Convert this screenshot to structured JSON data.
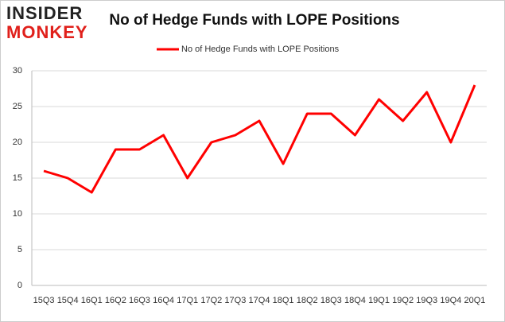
{
  "logo": {
    "line1": "INSIDER",
    "line2": "MONKEY"
  },
  "chart_data": {
    "type": "line",
    "title": "No of Hedge Funds with LOPE Positions",
    "categories": [
      "15Q3",
      "15Q4",
      "16Q1",
      "16Q2",
      "16Q3",
      "16Q4",
      "17Q1",
      "17Q2",
      "17Q3",
      "17Q4",
      "18Q1",
      "18Q2",
      "18Q3",
      "18Q4",
      "19Q1",
      "19Q2",
      "19Q3",
      "19Q4",
      "20Q1"
    ],
    "series": [
      {
        "name": "No of Hedge Funds with LOPE Positions",
        "color": "#ff0000",
        "values": [
          16,
          15,
          13,
          19,
          19,
          21,
          15,
          20,
          21,
          23,
          17,
          24,
          24,
          21,
          26,
          23,
          27,
          20,
          28
        ]
      }
    ],
    "ylim": [
      0,
      30
    ],
    "yticks": [
      0,
      5,
      10,
      15,
      20,
      25,
      30
    ],
    "grid": true,
    "legend": "top"
  }
}
